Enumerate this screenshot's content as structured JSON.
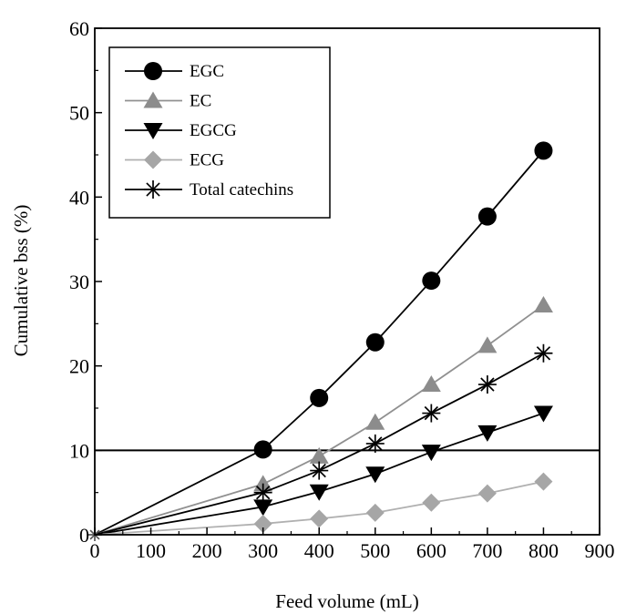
{
  "chart_data": {
    "type": "line",
    "title": "",
    "xlabel": "Feed volume (mL)",
    "ylabel": "Cumulative bss (%)",
    "xlim": [
      0,
      900
    ],
    "ylim": [
      0,
      60
    ],
    "xticks": [
      0,
      100,
      200,
      300,
      400,
      500,
      600,
      700,
      800,
      900
    ],
    "yticks": [
      0,
      10,
      20,
      30,
      40,
      50,
      60
    ],
    "xtick_labels": [
      "0",
      "100",
      "200",
      "300",
      "400",
      "500",
      "600",
      "700",
      "800",
      "900"
    ],
    "ytick_labels": [
      "0",
      "10",
      "20",
      "30",
      "40",
      "50",
      "60"
    ],
    "grid": false,
    "legend_position": "top-left",
    "reference_line": {
      "y": 10,
      "color": "#000000"
    },
    "x": [
      0,
      300,
      400,
      500,
      600,
      700,
      800
    ],
    "series": [
      {
        "name": "EGC",
        "marker": "circle",
        "color": "#000000",
        "marker_color": "#000000",
        "values": [
          0,
          10.1,
          16.2,
          22.8,
          30.1,
          37.7,
          45.5
        ]
      },
      {
        "name": "EC",
        "marker": "triangle-up",
        "color": "#909090",
        "marker_color": "#8c8c8c",
        "values": [
          0,
          6.0,
          9.3,
          13.3,
          17.8,
          22.4,
          27.2
        ]
      },
      {
        "name": "EGCG",
        "marker": "triangle-down",
        "color": "#000000",
        "marker_color": "#000000",
        "values": [
          0,
          3.3,
          5.1,
          7.2,
          9.8,
          12.1,
          14.4
        ]
      },
      {
        "name": "ECG",
        "marker": "diamond",
        "color": "#b0b0b0",
        "marker_color": "#a6a6a6",
        "values": [
          0,
          1.3,
          1.9,
          2.6,
          3.8,
          4.9,
          6.3
        ]
      },
      {
        "name": "Total catechins",
        "marker": "asterisk",
        "color": "#000000",
        "marker_color": "#000000",
        "values": [
          0,
          5.0,
          7.6,
          10.8,
          14.4,
          17.8,
          21.5
        ]
      }
    ]
  }
}
